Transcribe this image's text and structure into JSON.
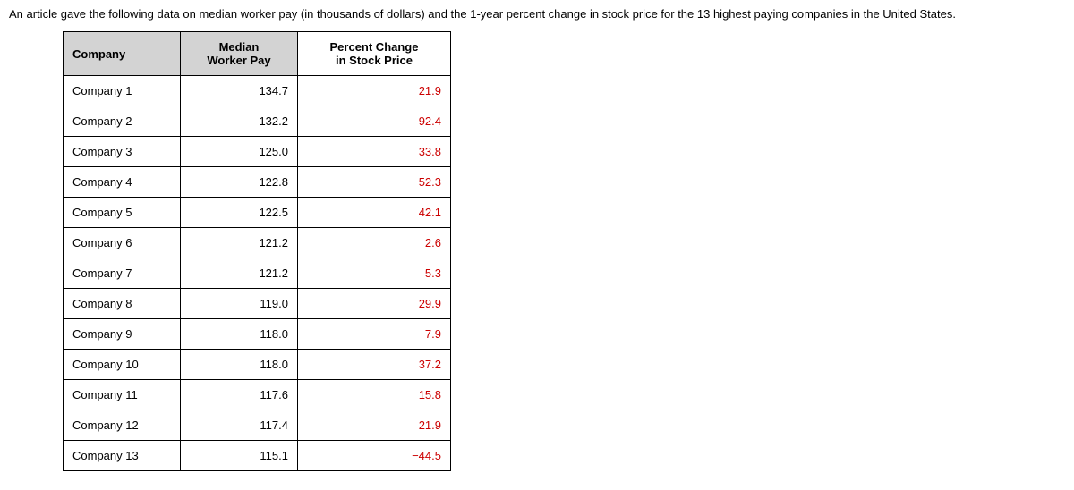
{
  "intro_text": "An article gave the following data on median worker pay (in thousands of dollars) and the 1-year percent change in stock price for the 13 highest paying companies in the United States.",
  "table": {
    "headers": {
      "company": "Company",
      "pay_line1": "Median",
      "pay_line2": "Worker Pay",
      "change_line1": "Percent Change",
      "change_line2": "in Stock Price"
    },
    "header_bg_color": "#d3d3d3",
    "border_color": "#000000",
    "change_text_color": "#cc0000",
    "body_text_color": "#000000",
    "rows": [
      {
        "company": "Company 1",
        "pay": "134.7",
        "change": "21.9"
      },
      {
        "company": "Company 2",
        "pay": "132.2",
        "change": "92.4"
      },
      {
        "company": "Company 3",
        "pay": "125.0",
        "change": "33.8"
      },
      {
        "company": "Company 4",
        "pay": "122.8",
        "change": "52.3"
      },
      {
        "company": "Company 5",
        "pay": "122.5",
        "change": "42.1"
      },
      {
        "company": "Company 6",
        "pay": "121.2",
        "change": "2.6"
      },
      {
        "company": "Company 7",
        "pay": "121.2",
        "change": "5.3"
      },
      {
        "company": "Company 8",
        "pay": "119.0",
        "change": "29.9"
      },
      {
        "company": "Company 9",
        "pay": "118.0",
        "change": "7.9"
      },
      {
        "company": "Company 10",
        "pay": "118.0",
        "change": "37.2"
      },
      {
        "company": "Company 11",
        "pay": "117.6",
        "change": "15.8"
      },
      {
        "company": "Company 12",
        "pay": "117.4",
        "change": "21.9"
      },
      {
        "company": "Company 13",
        "pay": "115.1",
        "change": "−44.5"
      }
    ]
  }
}
